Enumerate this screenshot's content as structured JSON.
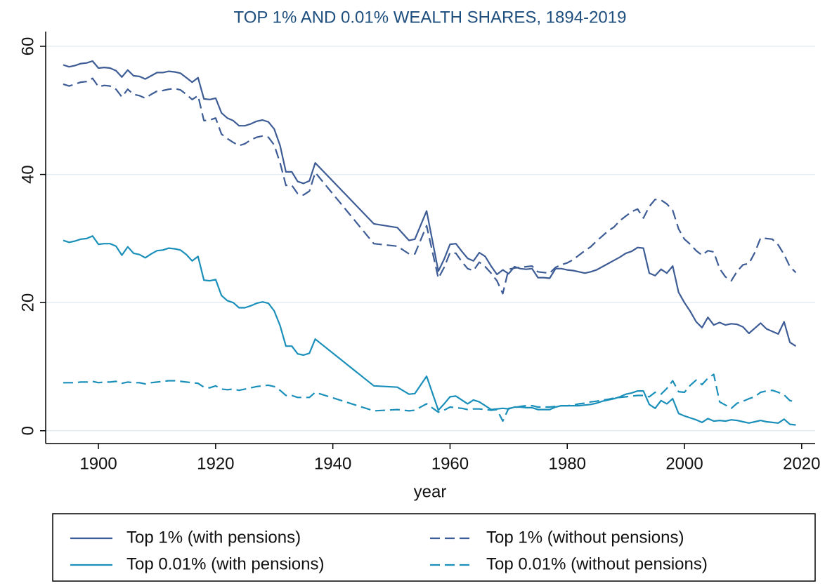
{
  "chart_data": {
    "type": "line",
    "title": "TOP 1% AND 0.01% WEALTH SHARES, 1894-2019",
    "xlabel": "year",
    "x": [
      1894,
      1895,
      1896,
      1897,
      1898,
      1899,
      1900,
      1901,
      1902,
      1903,
      1904,
      1905,
      1906,
      1907,
      1908,
      1909,
      1910,
      1911,
      1912,
      1913,
      1914,
      1915,
      1916,
      1917,
      1918,
      1919,
      1920,
      1921,
      1922,
      1923,
      1924,
      1925,
      1926,
      1927,
      1928,
      1929,
      1930,
      1931,
      1932,
      1933,
      1934,
      1935,
      1936,
      1937,
      1947,
      1951,
      1953,
      1954,
      1956,
      1958,
      1959,
      1960,
      1961,
      1962,
      1963,
      1964,
      1965,
      1966,
      1967,
      1968,
      1969,
      1970,
      1971,
      1972,
      1973,
      1974,
      1975,
      1976,
      1977,
      1978,
      1979,
      1980,
      1981,
      1982,
      1983,
      1984,
      1985,
      1986,
      1987,
      1988,
      1989,
      1990,
      1991,
      1992,
      1993,
      1994,
      1995,
      1996,
      1997,
      1998,
      1999,
      2000,
      2001,
      2002,
      2003,
      2004,
      2005,
      2006,
      2007,
      2008,
      2009,
      2010,
      2011,
      2012,
      2013,
      2014,
      2015,
      2016,
      2017,
      2018,
      2019
    ],
    "series": [
      {
        "name": "Top 1% (with pensions)",
        "color": "#3d5c95",
        "dash": false,
        "values": [
          57.1,
          56.8,
          57.0,
          57.3,
          57.4,
          57.7,
          56.6,
          56.7,
          56.6,
          56.2,
          55.2,
          56.3,
          55.4,
          55.3,
          54.9,
          55.4,
          55.9,
          55.9,
          56.1,
          56.0,
          55.8,
          55.1,
          54.4,
          55.1,
          51.8,
          51.7,
          51.9,
          49.6,
          48.8,
          48.4,
          47.6,
          47.6,
          47.9,
          48.3,
          48.5,
          48.2,
          47.1,
          44.5,
          40.4,
          40.4,
          38.9,
          38.6,
          39.0,
          41.8,
          32.3,
          31.7,
          29.7,
          29.9,
          34.3,
          24.9,
          26.8,
          29.1,
          29.2,
          28.0,
          26.9,
          26.5,
          27.8,
          27.2,
          25.7,
          24.4,
          25.1,
          24.5,
          25.6,
          25.3,
          25.2,
          25.3,
          23.9,
          23.9,
          23.8,
          25.3,
          25.3,
          25.1,
          25.0,
          24.8,
          24.6,
          24.8,
          25.1,
          25.6,
          26.1,
          26.6,
          27.1,
          27.7,
          28.0,
          28.6,
          28.5,
          24.6,
          24.2,
          25.2,
          24.6,
          25.7,
          21.6,
          20.0,
          18.6,
          17.0,
          16.1,
          17.7,
          16.5,
          16.9,
          16.5,
          16.7,
          16.6,
          16.2,
          15.2,
          16.0,
          16.8,
          15.9,
          15.5,
          15.1,
          17.0,
          13.8,
          13.2
        ]
      },
      {
        "name": "Top 1% (without pensions)",
        "color": "#3d5c95",
        "dash": true,
        "values": [
          54.1,
          53.8,
          54.1,
          54.4,
          54.5,
          55.0,
          53.7,
          53.9,
          53.8,
          53.3,
          52.1,
          53.3,
          52.5,
          52.3,
          51.9,
          52.5,
          53.0,
          53.1,
          53.3,
          53.4,
          53.2,
          52.5,
          51.7,
          52.3,
          48.4,
          48.5,
          48.8,
          46.3,
          45.6,
          45.0,
          44.5,
          44.8,
          45.4,
          45.8,
          46.0,
          45.8,
          44.6,
          41.8,
          38.3,
          38.3,
          37.0,
          36.8,
          37.4,
          40.3,
          29.2,
          28.8,
          27.6,
          27.6,
          32.0,
          23.8,
          25.5,
          27.8,
          27.7,
          26.4,
          25.3,
          25.0,
          26.3,
          25.6,
          24.6,
          23.4,
          21.4,
          25.2,
          25.4,
          25.5,
          25.6,
          25.7,
          24.8,
          24.7,
          24.6,
          25.5,
          25.9,
          26.2,
          26.7,
          27.4,
          28.1,
          28.7,
          29.6,
          30.4,
          31.2,
          31.8,
          32.8,
          33.5,
          34.2,
          34.6,
          33.2,
          35.0,
          36.1,
          36.0,
          35.4,
          34.4,
          31.5,
          29.9,
          29.1,
          28.1,
          27.4,
          28.1,
          27.9,
          25.3,
          24.0,
          23.4,
          24.9,
          25.9,
          26.1,
          27.8,
          30.1,
          30.0,
          29.9,
          29.0,
          27.5,
          25.6,
          24.7
        ]
      },
      {
        "name": "Top 0.01% (with pensions)",
        "color": "#1a8fba",
        "dash": false,
        "values": [
          29.7,
          29.4,
          29.6,
          29.9,
          30.0,
          30.4,
          29.1,
          29.2,
          29.2,
          28.8,
          27.4,
          28.7,
          27.7,
          27.5,
          27.0,
          27.6,
          28.1,
          28.2,
          28.5,
          28.4,
          28.2,
          27.5,
          26.5,
          27.2,
          23.5,
          23.4,
          23.6,
          21.1,
          20.3,
          20.0,
          19.2,
          19.2,
          19.5,
          19.9,
          20.1,
          19.9,
          18.7,
          16.4,
          13.2,
          13.2,
          12.0,
          11.8,
          12.1,
          14.3,
          7.0,
          6.8,
          5.7,
          5.8,
          8.5,
          3.2,
          4.2,
          5.3,
          5.4,
          4.8,
          4.2,
          4.8,
          4.5,
          3.9,
          3.3,
          3.4,
          3.5,
          3.4,
          3.7,
          3.7,
          3.6,
          3.6,
          3.3,
          3.3,
          3.3,
          3.7,
          3.9,
          3.9,
          3.9,
          3.9,
          4.0,
          4.1,
          4.3,
          4.6,
          4.8,
          5.0,
          5.3,
          5.7,
          5.9,
          6.2,
          6.2,
          4.1,
          3.5,
          4.7,
          4.2,
          5.0,
          2.7,
          2.3,
          2.0,
          1.7,
          1.3,
          1.9,
          1.5,
          1.6,
          1.5,
          1.7,
          1.6,
          1.4,
          1.2,
          1.4,
          1.6,
          1.4,
          1.3,
          1.2,
          1.8,
          1.0,
          0.9
        ]
      },
      {
        "name": "Top 0.01% (without pensions)",
        "color": "#1a8fba",
        "dash": true,
        "values": [
          7.5,
          7.5,
          7.5,
          7.6,
          7.6,
          7.7,
          7.5,
          7.6,
          7.6,
          7.7,
          7.4,
          7.6,
          7.5,
          7.5,
          7.3,
          7.5,
          7.6,
          7.7,
          7.8,
          7.8,
          7.7,
          7.6,
          7.5,
          7.4,
          6.8,
          6.7,
          7.0,
          6.5,
          6.4,
          6.5,
          6.3,
          6.5,
          6.7,
          6.9,
          7.0,
          7.1,
          6.9,
          6.3,
          5.5,
          5.5,
          5.2,
          5.2,
          5.2,
          6.0,
          3.1,
          3.3,
          3.1,
          3.2,
          4.2,
          2.9,
          3.2,
          3.7,
          3.6,
          3.5,
          3.3,
          3.4,
          3.4,
          3.3,
          3.2,
          3.3,
          1.5,
          3.5,
          3.6,
          3.8,
          3.9,
          3.9,
          3.7,
          3.7,
          3.7,
          3.8,
          3.9,
          3.9,
          4.0,
          4.2,
          4.3,
          4.5,
          4.6,
          4.8,
          4.9,
          5.1,
          5.2,
          5.3,
          5.4,
          5.5,
          5.5,
          5.3,
          6.0,
          5.7,
          6.6,
          7.8,
          6.1,
          6.0,
          7.1,
          7.9,
          7.2,
          8.2,
          8.8,
          4.5,
          4.0,
          3.5,
          4.3,
          4.6,
          5.0,
          5.3,
          6.0,
          6.2,
          6.3,
          6.0,
          5.6,
          4.7,
          4.5
        ]
      }
    ],
    "xlim": [
      1891,
      2022.3
    ],
    "ylim": [
      -2,
      62.3
    ],
    "xticks": [
      1900,
      1920,
      1940,
      1960,
      1980,
      2000,
      2020
    ],
    "yticks": [
      0,
      20,
      40,
      60
    ],
    "grid": true,
    "legend": "bottom"
  }
}
